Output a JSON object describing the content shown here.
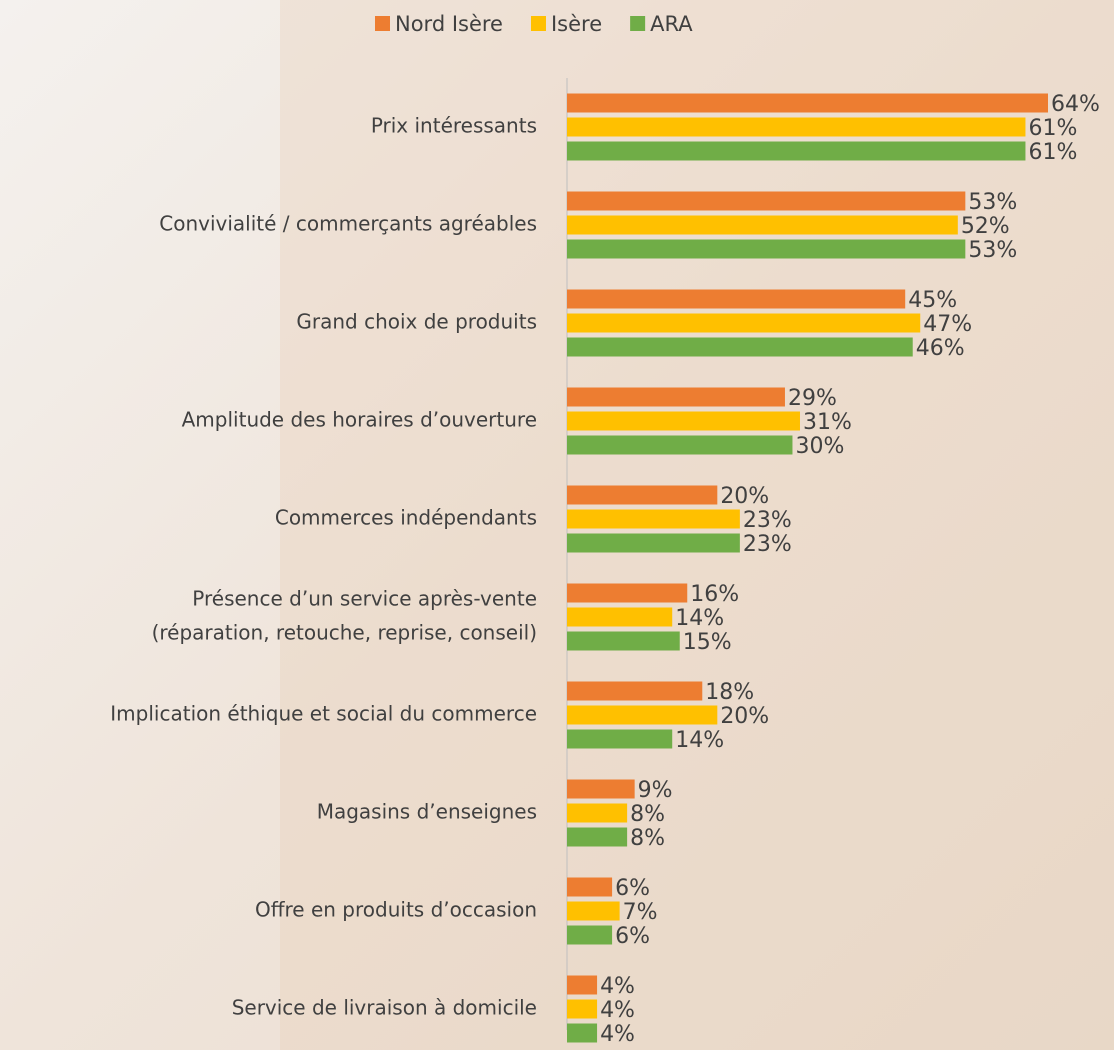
{
  "chart_data": {
    "type": "hbar",
    "categories": [
      "Prix intéressants",
      "Convivialité / commerçants agréables",
      "Grand choix de produits",
      "Amplitude des horaires d’ouverture",
      "Commerces indépendants",
      [
        "Présence d’un service après-vente",
        "(réparation, retouche, reprise, conseil)"
      ],
      "Implication éthique et social du commerce",
      "Magasins d’enseignes",
      "Offre en produits d’occasion",
      "Service de livraison à domicile"
    ],
    "series": [
      {
        "name": "Nord Isère",
        "color": "#ED7D31",
        "values": [
          64,
          53,
          45,
          29,
          20,
          16,
          18,
          9,
          6,
          4
        ],
        "value_labels": [
          "64%",
          "53%",
          "45%",
          "29%",
          "20%",
          "16%",
          "18%",
          "9%",
          "6%",
          "4%"
        ]
      },
      {
        "name": "Isère",
        "color": "#FFC000",
        "values": [
          61,
          52,
          47,
          31,
          23,
          14,
          20,
          8,
          7,
          4
        ],
        "value_labels": [
          "61%",
          "52%",
          "47%",
          "31%",
          "23%",
          "14%",
          "20%",
          "8%",
          "7%",
          "4%"
        ]
      },
      {
        "name": "ARA",
        "color": "#70AD47",
        "values": [
          61,
          53,
          46,
          30,
          23,
          15,
          14,
          8,
          6,
          4
        ],
        "value_labels": [
          "61%",
          "53%",
          "46%",
          "30%",
          "23%",
          "15%",
          "14%",
          "8%",
          "6%",
          "4%"
        ]
      }
    ]
  }
}
